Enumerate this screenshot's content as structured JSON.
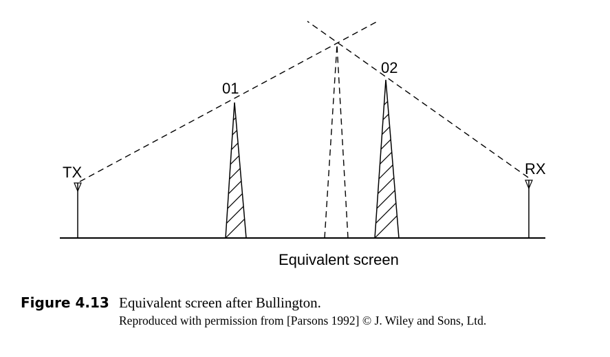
{
  "diagram": {
    "labels": {
      "tx": "TX",
      "rx": "RX",
      "obstacle1": "01",
      "obstacle2": "02",
      "screen": "Equivalent screen"
    },
    "line_color": "#000000"
  },
  "caption": {
    "figure_number": "Figure 4.13",
    "title": "Equivalent screen after Bullington.",
    "credit": "Reproduced with permission from [Parsons 1992] © J. Wiley and Sons, Ltd."
  }
}
